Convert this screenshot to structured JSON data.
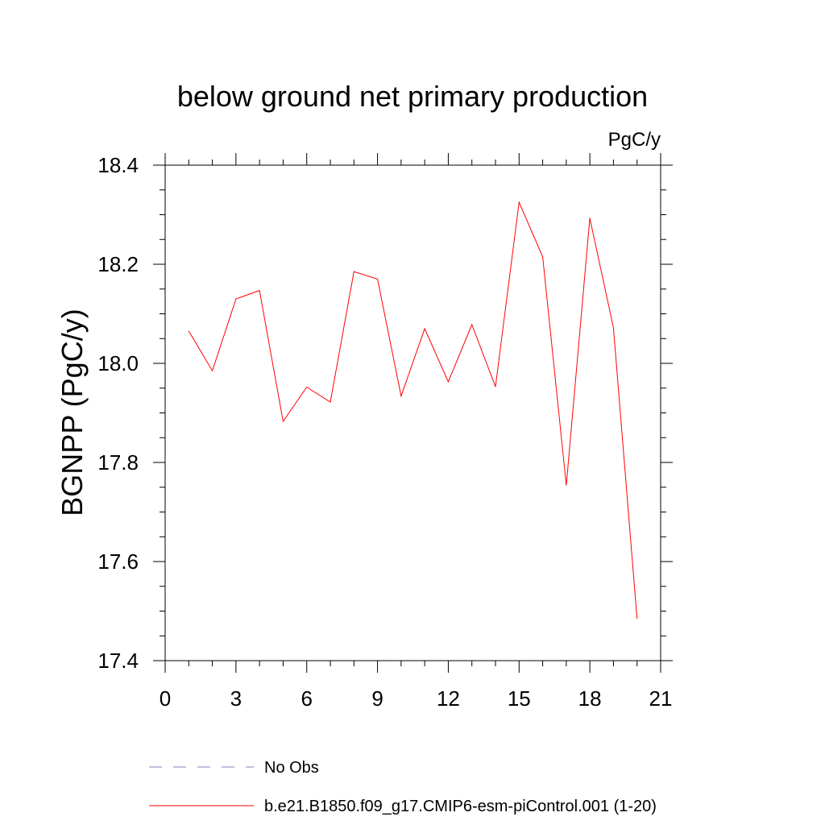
{
  "chart_data": {
    "type": "line",
    "title": "below ground net primary production",
    "units_label": "PgC/y",
    "ylabel": "BGNPP  (PgC/y)",
    "xlabel": "",
    "xlim": [
      0,
      21
    ],
    "ylim": [
      17.4,
      18.4
    ],
    "xticks": [
      0,
      3,
      6,
      9,
      12,
      15,
      18,
      21
    ],
    "yticks": [
      17.4,
      17.6,
      17.8,
      18.0,
      18.2,
      18.4
    ],
    "ytick_labels": [
      "17.4",
      "17.6",
      "17.8",
      "18.0",
      "18.2",
      "18.4"
    ],
    "grid": false,
    "legend_position": "bottom",
    "series": [
      {
        "name": "b.e21.B1850.f09_g17.CMIP6-esm-piControl.001 (1-20)",
        "color": "#ff0000",
        "line_style": "solid",
        "x": [
          1,
          2,
          3,
          4,
          5,
          6,
          7,
          8,
          9,
          10,
          11,
          12,
          13,
          14,
          15,
          16,
          17,
          18,
          19,
          20
        ],
        "values": [
          18.065,
          17.985,
          18.13,
          18.147,
          17.883,
          17.952,
          17.922,
          18.185,
          18.17,
          17.934,
          18.07,
          17.963,
          18.078,
          17.953,
          18.325,
          18.215,
          17.754,
          18.293,
          18.072,
          17.485
        ]
      }
    ],
    "legend": [
      {
        "label": "No Obs",
        "color": "#8080c0",
        "line_style": "dashed"
      },
      {
        "label": "b.e21.B1850.f09_g17.CMIP6-esm-piControl.001 (1-20)",
        "color": "#ff0000",
        "line_style": "solid"
      }
    ]
  }
}
